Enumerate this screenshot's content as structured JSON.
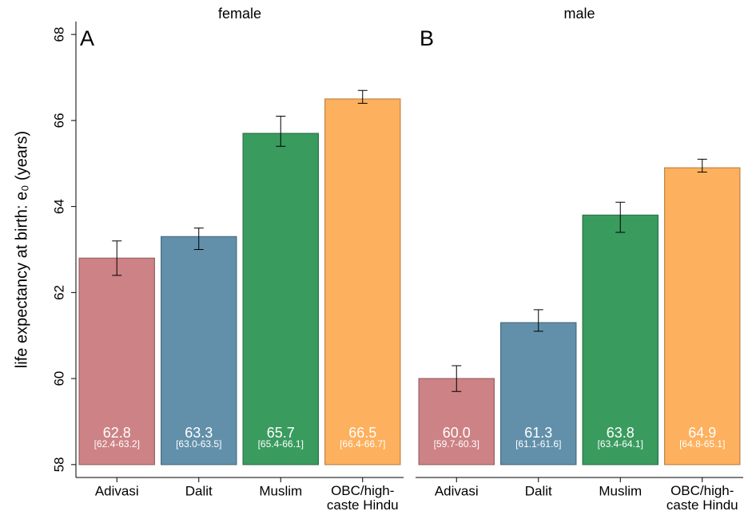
{
  "chart_data": [
    {
      "type": "bar",
      "title": "female",
      "panel_label": "A",
      "ylabel": "life expectancy at birth: e₀ (years)",
      "categories": [
        "Adivasi",
        "Dalit",
        "Muslim",
        "OBC/high-\ncaste Hindu"
      ],
      "values": [
        62.8,
        63.3,
        65.7,
        66.5
      ],
      "value_labels": [
        "62.8",
        "63.3",
        "65.7",
        "66.5"
      ],
      "ci_low": [
        62.4,
        63.0,
        65.4,
        66.4
      ],
      "ci_high": [
        63.2,
        63.5,
        66.1,
        66.7
      ],
      "ci_labels": [
        "[62.4-63.2]",
        "[63.0-63.5]",
        "[65.4-66.1]",
        "[66.4-66.7]"
      ],
      "colors": [
        "#cd8285",
        "#6290aa",
        "#3a9b5f",
        "#fdb05d"
      ],
      "ylim": [
        57.7,
        68.3
      ],
      "yticks": [
        58,
        60,
        62,
        64,
        66,
        68
      ]
    },
    {
      "type": "bar",
      "title": "male",
      "panel_label": "B",
      "categories": [
        "Adivasi",
        "Dalit",
        "Muslim",
        "OBC/high-\ncaste Hindu"
      ],
      "values": [
        60.0,
        61.3,
        63.8,
        64.9
      ],
      "value_labels": [
        "60.0",
        "61.3",
        "63.8",
        "64.9"
      ],
      "ci_low": [
        59.7,
        61.1,
        63.4,
        64.8
      ],
      "ci_high": [
        60.3,
        61.6,
        64.1,
        65.1
      ],
      "ci_labels": [
        "[59.7-60.3]",
        "[61.1-61.6]",
        "[63.4-64.1]",
        "[64.8-65.1]"
      ],
      "colors": [
        "#cd8285",
        "#6290aa",
        "#3a9b5f",
        "#fdb05d"
      ],
      "ylim": [
        57.7,
        68.3
      ]
    }
  ]
}
